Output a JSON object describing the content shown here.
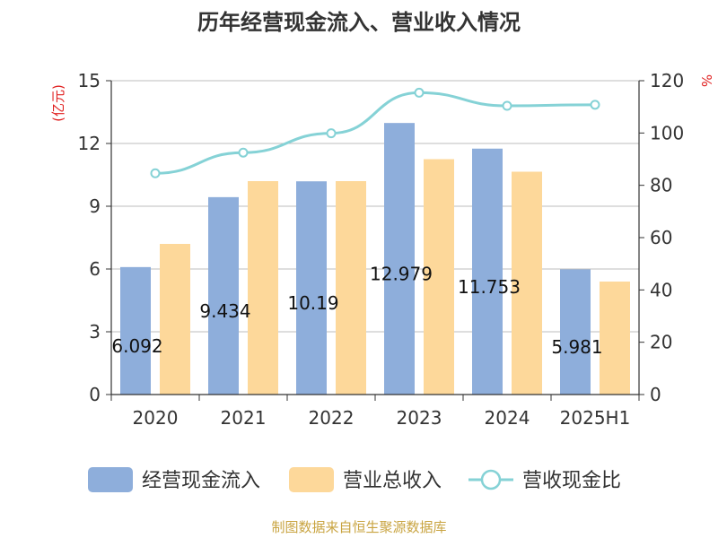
{
  "chart_data": {
    "type": "bar",
    "title": "历年经营现金流入、营业收入情况",
    "categories": [
      "2020",
      "2021",
      "2022",
      "2023",
      "2024",
      "2025H1"
    ],
    "series": [
      {
        "name": "经营现金流入",
        "type": "bar",
        "axis": "left",
        "color": "#8eaedb",
        "values": [
          6.092,
          9.434,
          10.191,
          12.979,
          11.753,
          5.981
        ],
        "labels": [
          "6.092",
          "9.434",
          "10.19",
          "12.979",
          "11.753",
          "5.981"
        ]
      },
      {
        "name": "营业总收入",
        "type": "bar",
        "axis": "left",
        "color": "#fdd89a",
        "values": [
          7.2,
          10.2,
          10.2,
          11.25,
          10.65,
          5.4
        ]
      },
      {
        "name": "营收现金比",
        "type": "line",
        "axis": "right",
        "color": "#85d2d6",
        "values": [
          84.6,
          92.5,
          99.9,
          115.4,
          110.4,
          110.8
        ]
      }
    ],
    "y_left": {
      "label": "(亿元)",
      "min": 0,
      "max": 15,
      "ticks": [
        "0",
        "3",
        "6",
        "9",
        "12",
        "15"
      ]
    },
    "y_right": {
      "label": "%",
      "min": 0,
      "max": 120,
      "ticks": [
        "0",
        "20",
        "40",
        "60",
        "80",
        "100",
        "120"
      ]
    },
    "grid": true,
    "legend_position": "bottom"
  },
  "footer": {
    "source": "制图数据来自恒生聚源数据库"
  },
  "colors": {
    "axis_label": "#e02020",
    "text": "#333333",
    "grid": "#bbbbbb",
    "source": "#c9a441"
  }
}
